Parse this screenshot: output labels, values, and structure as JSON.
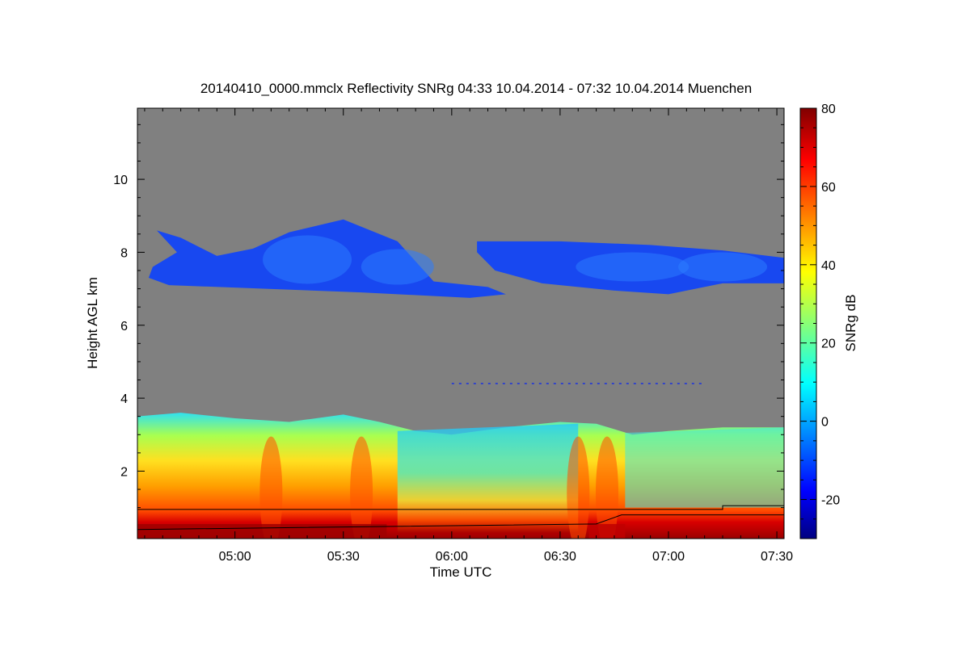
{
  "chart_data": {
    "type": "heatmap",
    "title": "20140410_0000.mmclx Reflectivity SNRg   04:33 10.04.2014 - 07:32 10.04.2014 Muenchen",
    "xlabel": "Time UTC",
    "ylabel": "Height AGL km",
    "xlim": [
      "04:33",
      "07:32"
    ],
    "ylim": [
      0.15,
      11.95
    ],
    "x_ticks": [
      "05:00",
      "05:30",
      "06:00",
      "06:30",
      "07:00",
      "07:30"
    ],
    "y_ticks": [
      2,
      4,
      6,
      8,
      10
    ],
    "colorbar": {
      "label": "SNRg dB",
      "range": [
        -30,
        80
      ],
      "ticks": [
        -20,
        0,
        20,
        40,
        60,
        80
      ]
    },
    "background_color": "#808080",
    "features": [
      {
        "name": "upper cloud layer",
        "time_range": [
          "04:35",
          "07:32"
        ],
        "height_range_km": [
          6.7,
          9.4
        ],
        "snr_db_range": [
          -25,
          -5
        ]
      },
      {
        "name": "boundary layer echo",
        "time_range": [
          "04:33",
          "07:32"
        ],
        "height_range_km": [
          0.15,
          3.6
        ],
        "snr_db_range": [
          0,
          80
        ]
      }
    ],
    "lines": [
      {
        "name": "upper line",
        "x": [
          "04:33",
          "07:15",
          "07:15",
          "07:32"
        ],
        "y": [
          0.95,
          0.95,
          1.05,
          1.05
        ]
      },
      {
        "name": "lower line",
        "x": [
          "04:33",
          "06:40",
          "06:47",
          "07:32"
        ],
        "y": [
          0.4,
          0.55,
          0.8,
          0.8
        ]
      }
    ]
  }
}
